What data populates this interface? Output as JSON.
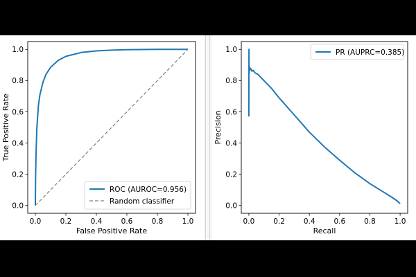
{
  "colors": {
    "curve": "#1f77b4",
    "baseline": "#808080",
    "axis": "#000000",
    "legend_border": "#cccccc"
  },
  "chart_data": [
    {
      "type": "line",
      "id": "roc",
      "xlabel": "False Positive Rate",
      "ylabel": "True Positive Rate",
      "xlim": [
        -0.05,
        1.05
      ],
      "ylim": [
        -0.05,
        1.05
      ],
      "xticks": [
        0.0,
        0.2,
        0.4,
        0.6,
        0.8,
        1.0
      ],
      "yticks": [
        0.0,
        0.2,
        0.4,
        0.6,
        0.8,
        1.0
      ],
      "tick_labels": [
        "0.0",
        "0.2",
        "0.4",
        "0.6",
        "0.8",
        "1.0"
      ],
      "legend_position": "lower-right",
      "series": [
        {
          "name": "ROC (AUROC=0.956)",
          "style": "solid",
          "x": [
            0.0,
            0.0,
            0.002,
            0.005,
            0.01,
            0.02,
            0.03,
            0.05,
            0.07,
            0.1,
            0.15,
            0.2,
            0.3,
            0.4,
            0.5,
            0.6,
            0.7,
            0.8,
            0.9,
            1.0
          ],
          "y": [
            0.0,
            0.03,
            0.2,
            0.35,
            0.5,
            0.64,
            0.71,
            0.79,
            0.84,
            0.885,
            0.93,
            0.955,
            0.98,
            0.99,
            0.995,
            0.998,
            0.999,
            1.0,
            1.0,
            1.0
          ]
        },
        {
          "name": "Random classifier",
          "style": "dashed",
          "x": [
            0.0,
            1.0
          ],
          "y": [
            0.0,
            1.0
          ]
        }
      ]
    },
    {
      "type": "line",
      "id": "pr",
      "xlabel": "Recall",
      "ylabel": "Precision",
      "xlim": [
        -0.05,
        1.05
      ],
      "ylim": [
        -0.05,
        1.05
      ],
      "xticks": [
        0.0,
        0.2,
        0.4,
        0.6,
        0.8,
        1.0
      ],
      "yticks": [
        0.0,
        0.2,
        0.4,
        0.6,
        0.8,
        1.0
      ],
      "tick_labels": [
        "0.0",
        "0.2",
        "0.4",
        "0.6",
        "0.8",
        "1.0"
      ],
      "legend_position": "top-right",
      "series": [
        {
          "name": "PR (AUPRC=0.385)",
          "style": "solid",
          "x": [
            0.0,
            0.001,
            0.002,
            0.003,
            0.004,
            0.006,
            0.01,
            0.015,
            0.02,
            0.03,
            0.04,
            0.06,
            0.08,
            0.1,
            0.15,
            0.2,
            0.3,
            0.4,
            0.5,
            0.6,
            0.7,
            0.8,
            0.9,
            0.95,
            0.98,
            1.0
          ],
          "y": [
            0.57,
            1.0,
            0.85,
            0.89,
            0.87,
            0.885,
            0.87,
            0.875,
            0.86,
            0.865,
            0.85,
            0.84,
            0.82,
            0.8,
            0.75,
            0.69,
            0.58,
            0.47,
            0.375,
            0.29,
            0.21,
            0.14,
            0.08,
            0.05,
            0.03,
            0.012
          ]
        }
      ]
    }
  ]
}
